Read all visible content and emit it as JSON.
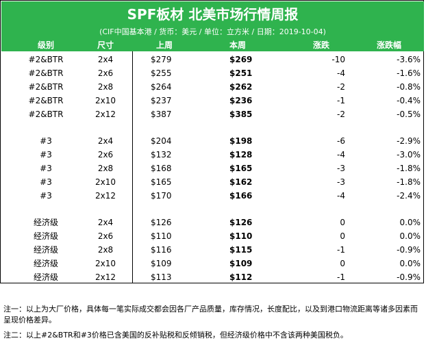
{
  "title": "SPF板材 北美市场行情周报",
  "subtitle": "(CIF中国基本港 / 货币：美元 / 单位：立方米 / 日期：2019-10-04)",
  "columns": [
    "级别",
    "尺寸",
    "上周",
    "本周",
    "涨跌",
    "涨跌幅"
  ],
  "groups": [
    {
      "rows": [
        [
          "#2&BTR",
          "2x4",
          "$279",
          "$269",
          "-10",
          "-3.6%"
        ],
        [
          "#2&BTR",
          "2x6",
          "$255",
          "$251",
          "-4",
          "-1.6%"
        ],
        [
          "#2&BTR",
          "2x8",
          "$264",
          "$262",
          "-2",
          "-0.8%"
        ],
        [
          "#2&BTR",
          "2x10",
          "$237",
          "$236",
          "-1",
          "-0.4%"
        ],
        [
          "#2&BTR",
          "2x12",
          "$387",
          "$385",
          "-2",
          "-0.5%"
        ]
      ]
    },
    {
      "rows": [
        [
          "#3",
          "2x4",
          "$204",
          "$198",
          "-6",
          "-2.9%"
        ],
        [
          "#3",
          "2x6",
          "$132",
          "$128",
          "-4",
          "-3.0%"
        ],
        [
          "#3",
          "2x8",
          "$168",
          "$165",
          "-3",
          "-1.8%"
        ],
        [
          "#3",
          "2x10",
          "$165",
          "$162",
          "-3",
          "-1.8%"
        ],
        [
          "#3",
          "2x12",
          "$170",
          "$166",
          "-4",
          "-2.4%"
        ]
      ]
    },
    {
      "rows": [
        [
          "经济级",
          "2x4",
          "$126",
          "$126",
          "0",
          "0.0%"
        ],
        [
          "经济级",
          "2x6",
          "$110",
          "$110",
          "0",
          "0.0%"
        ],
        [
          "经济级",
          "2x8",
          "$116",
          "$115",
          "-1",
          "-0.9%"
        ],
        [
          "经济级",
          "2x10",
          "$109",
          "$109",
          "0",
          "0.0%"
        ],
        [
          "经济级",
          "2x12",
          "$113",
          "$112",
          "-1",
          "-0.9%"
        ]
      ]
    }
  ],
  "notes": [
    "注一：以上为大厂价格，具体每一笔实际成交都会因各厂产品质量，库存情况，长度配比，以及到港口物流距离等诸多因素而呈现价格差异。",
    "注二：以上#2&BTR和#3价格已含美国的反补贴税和反倾销税，但经济级价格中不含该两种美国税负。"
  ]
}
